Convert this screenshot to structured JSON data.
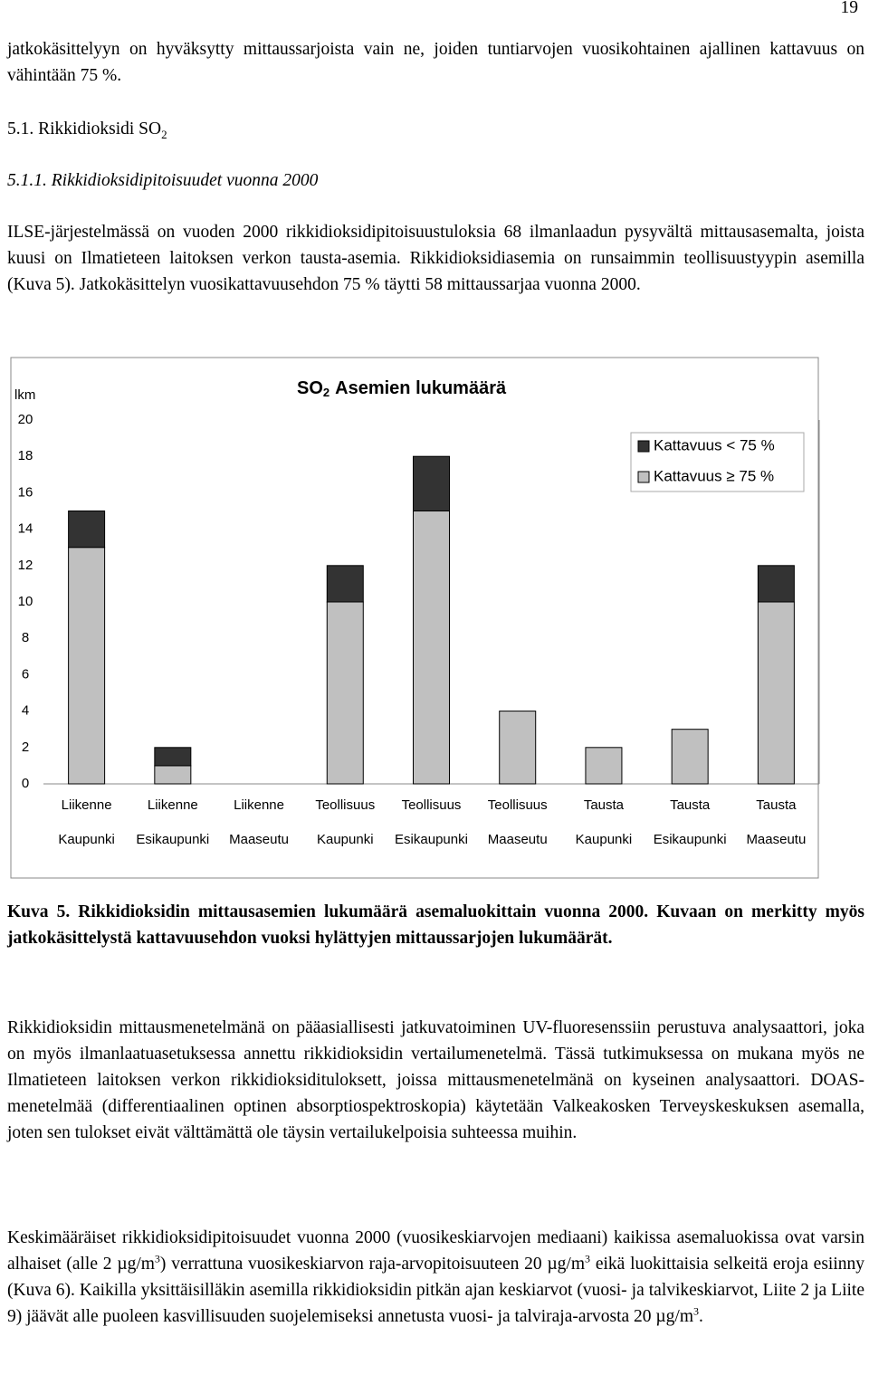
{
  "page_number": "19",
  "intro": [
    "jatkokäsittelyyn on hyväksytty mittaussarjoista vain ne, joiden tuntiarvojen vuosikohtainen ajallinen kattavuus on vähintään 75 %."
  ],
  "heading": [
    "5.1. Rikkidioksidi SO",
    "2"
  ],
  "subheading": "5.1.1. Rikkidioksidipitoisuudet vuonna 2000",
  "paragraph": [
    "ILSE-järjestelmässä on vuoden 2000 rikkidioksidipitoisuustuloksia 68 ilmanlaadun pysyvältä mittausasemalta, joista kuusi on Ilmatieteen laitoksen verkon tausta-asemia. Rikkidioksidiasemia on runsaimmin teollisuustyypin asemilla (Kuva 5). Jatkokäsittelyn vuosikattavuusehdon 75 % täytti 58 mittaussarjaa vuonna 2000."
  ],
  "chart_data": {
    "type": "stacked-bar",
    "title": [
      "SO",
      "2",
      "Asemien lukumäärä"
    ],
    "y_label": "lkm",
    "categories": [
      [
        "Liikenne",
        "Kaupunki"
      ],
      [
        "Liikenne",
        "Esikaupunki"
      ],
      [
        "Liikenne",
        "Maaseutu"
      ],
      [
        "Teollisuus",
        "Kaupunki"
      ],
      [
        "Teollisuus",
        "Esikaupunki"
      ],
      [
        "Teollisuus",
        "Maaseutu"
      ],
      [
        "Tausta",
        "Kaupunki"
      ],
      [
        "Tausta",
        "Esikaupunki"
      ],
      [
        "Tausta",
        "Maaseutu"
      ]
    ],
    "series": [
      {
        "name": "Kattavuus ≥ 75 %",
        "color": "#c0c0c0",
        "values": [
          13,
          1,
          0,
          10,
          15,
          4,
          2,
          3,
          10
        ]
      },
      {
        "name": "Kattavuus < 75 %",
        "color": "#333333",
        "values": [
          2,
          1,
          0,
          2,
          3,
          0,
          0,
          0,
          2
        ]
      }
    ],
    "ylim": [
      0,
      20
    ],
    "yticks": [
      0,
      2,
      4,
      6,
      8,
      10,
      12,
      14,
      16,
      18,
      20
    ]
  },
  "caption": "Kuva 5. Rikkidioksidin mittausasemien lukumäärä asemaluokittain vuonna 2000. Kuvaan on merkitty myös jatkokäsittelystä kattavuusehdon vuoksi hylättyjen mittaussarjojen lukumäärät.",
  "paragraphs_after": [
    [
      "Rikkidioksidin mittausmenetelmänä on pääasiallisesti jatkuvatoiminen UV-fluoresenssiin perustuva analysaattori, joka on myös ilmanlaatuasetuksessa annettu rikkidioksidin vertailumenetelmä. Tässä tutkimuksessa on mukana myös ne Ilmatieteen laitoksen verkon rikkidioksidituloksett, joissa mittausmenetelmänä on kyseinen analysaattori. DOAS-menetelmää (differentiaalinen optinen absorptiospektroskopia) käytetään Valkeakosken Terveyskeskuksen asemalla, joten sen tulokset eivät välttämättä ole täysin vertailukelpoisia suhteessa muihin."
    ],
    [
      "Keskimääräiset rikkidioksidipitoisuudet vuonna 2000 (vuosikeskiarvojen mediaani) kaikissa asemaluokissa ovat varsin alhaiset (alle 2 µg/m",
      "3",
      ") verrattuna vuosikeskiarvon raja-arvopitoisuuteen 20 µg/m",
      "3",
      " eikä luokittaisia selkeitä eroja esiinny (Kuva 6). Kaikilla yksittäisilläkin asemilla rikkidioksidin pitkän ajan keskiarvot (vuosi- ja talvikeskiarvot, Liite 2 ja Liite 9) jäävät alle puoleen kasvillisuuden suojelemiseksi annetusta vuosi- ja talviraja-arvosta 20 µg/m",
      "3",
      "."
    ]
  ]
}
